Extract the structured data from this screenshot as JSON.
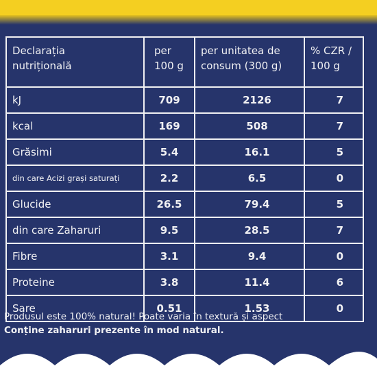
{
  "colors": {
    "panel": "#26346b",
    "text": "#f1f1f3",
    "top_band": "#f4cf21",
    "bottom_scallop": "#ffffff"
  },
  "table": {
    "headers": [
      {
        "line1": "Declarația",
        "line2": "nutrițională"
      },
      {
        "line1": "per",
        "line2": "100 g"
      },
      {
        "line1": "per unitatea de",
        "line2": "consum (300 g)"
      },
      {
        "line1": "% CZR /",
        "line2": "100 g"
      }
    ],
    "rows": [
      {
        "label": "kJ",
        "per100": "709",
        "perUnit": "2126",
        "czr": "7"
      },
      {
        "label": "kcal",
        "per100": "169",
        "perUnit": "508",
        "czr": "7"
      },
      {
        "label": "Grăsimi",
        "per100": "5.4",
        "perUnit": "16.1",
        "czr": "5"
      },
      {
        "label": "din care Acizi grași saturați",
        "per100": "2.2",
        "perUnit": "6.5",
        "czr": "0"
      },
      {
        "label": "Glucide",
        "per100": "26.5",
        "perUnit": "79.4",
        "czr": "5"
      },
      {
        "label": "din care Zaharuri",
        "per100": "9.5",
        "perUnit": "28.5",
        "czr": "7"
      },
      {
        "label": "Fibre",
        "per100": "3.1",
        "perUnit": "9.4",
        "czr": "0"
      },
      {
        "label": "Proteine",
        "per100": "3.8",
        "perUnit": "11.4",
        "czr": "6"
      },
      {
        "label": "Sare",
        "per100": "0.51",
        "perUnit": "1.53",
        "czr": "0"
      }
    ]
  },
  "footer": {
    "line1": "Produsul este 100% natural! Poate varia în textură și aspect",
    "line2": "Conține zaharuri prezente în mod natural."
  }
}
